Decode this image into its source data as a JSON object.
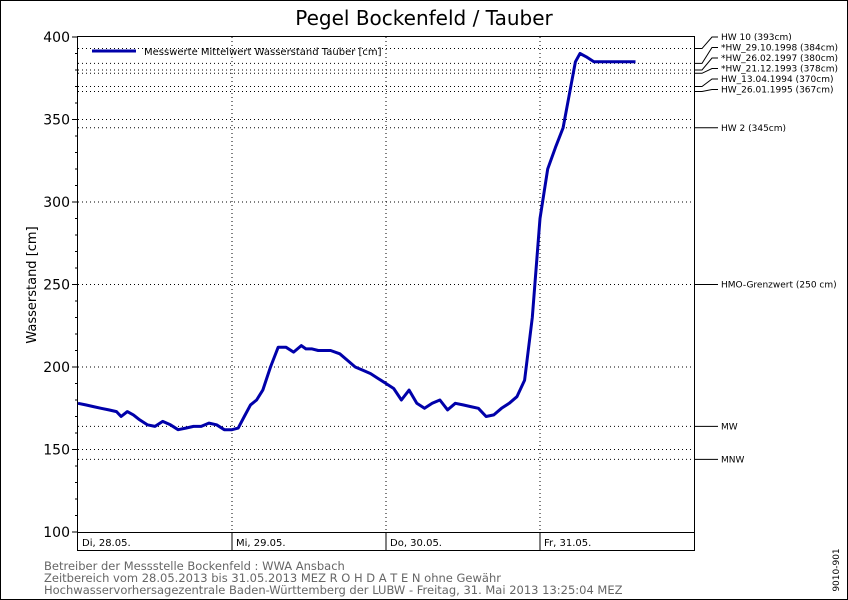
{
  "chart_data": {
    "type": "line",
    "title": "Pegel Bockenfeld / Tauber",
    "ylabel": "Wasserstand [cm]",
    "ylim": [
      100,
      400
    ],
    "yticks": [
      "100",
      "150",
      "200",
      "250",
      "300",
      "350",
      "400"
    ],
    "xlim": [
      0,
      4
    ],
    "grid": true,
    "legend_placement": "top-left",
    "day_labels": [
      "Di, 28.05.",
      "Mi, 29.05.",
      "Do, 30.05.",
      "Fr, 31.05."
    ],
    "series": [
      {
        "name": "Messwerte Mittelwert Wasserstand Tauber [cm]",
        "color": "#0000aa",
        "x": [
          0.0,
          0.05,
          0.1,
          0.15,
          0.2,
          0.25,
          0.28,
          0.32,
          0.36,
          0.4,
          0.45,
          0.5,
          0.55,
          0.6,
          0.65,
          0.7,
          0.75,
          0.8,
          0.85,
          0.9,
          0.95,
          1.0,
          1.04,
          1.08,
          1.12,
          1.16,
          1.2,
          1.25,
          1.3,
          1.35,
          1.4,
          1.45,
          1.48,
          1.52,
          1.56,
          1.6,
          1.64,
          1.7,
          1.75,
          1.8,
          1.85,
          1.9,
          1.95,
          2.0,
          2.05,
          2.1,
          2.15,
          2.2,
          2.25,
          2.3,
          2.35,
          2.4,
          2.45,
          2.5,
          2.55,
          2.6,
          2.65,
          2.7,
          2.75,
          2.8,
          2.85,
          2.9,
          2.95,
          3.0,
          3.05,
          3.1,
          3.15,
          3.2,
          3.23,
          3.26,
          3.3,
          3.35,
          3.4,
          3.45,
          3.5,
          3.53,
          3.55,
          3.58,
          3.62
        ],
        "values": [
          178,
          177,
          176,
          175,
          174,
          173,
          170,
          173,
          171,
          168,
          165,
          164,
          167,
          165,
          162,
          163,
          164,
          164,
          166,
          165,
          162,
          162,
          163,
          170,
          177,
          180,
          186,
          200,
          212,
          212,
          209,
          213,
          211,
          211,
          210,
          210,
          210,
          208,
          204,
          200,
          198,
          196,
          193,
          190,
          187,
          180,
          186,
          178,
          175,
          178,
          180,
          174,
          178,
          177,
          176,
          175,
          170,
          171,
          175,
          178,
          182,
          192,
          230,
          290,
          320,
          333,
          345,
          370,
          385,
          390,
          388,
          385,
          385,
          385,
          385,
          385,
          385,
          385,
          385
        ]
      }
    ],
    "reference_lines": [
      {
        "label": "HW 10 (393cm)",
        "value": 393
      },
      {
        "label": "*HW_29.10.1998 (384cm)",
        "value": 384
      },
      {
        "label": "*HW_26.02.1997 (380cm)",
        "value": 380
      },
      {
        "label": "*HW_21.12.1993 (378cm)",
        "value": 378
      },
      {
        "label": "HW_13.04.1994 (370cm)",
        "value": 370
      },
      {
        "label": "HW_26.01.1995 (367cm)",
        "value": 367
      },
      {
        "label": "HW 2 (345cm)",
        "value": 345
      },
      {
        "label": "HMO-Grenzwert (250 cm)",
        "value": 250
      },
      {
        "label": "MW",
        "value": 164
      },
      {
        "label": "MNW",
        "value": 144
      }
    ]
  },
  "footer": {
    "line1": "Betreiber der Messstelle Bockenfeld : WWA Ansbach",
    "line2": "Zeitbereich vom 28.05.2013 bis 31.05.2013    MEZ    R O H D A T E N ohne Gewähr",
    "line3": "Hochwasservorhersagezentrale Baden-Württemberg der LUBW - Freitag, 31. Mai 2013 13:25:04 MEZ"
  },
  "chart_code": "9010-901"
}
